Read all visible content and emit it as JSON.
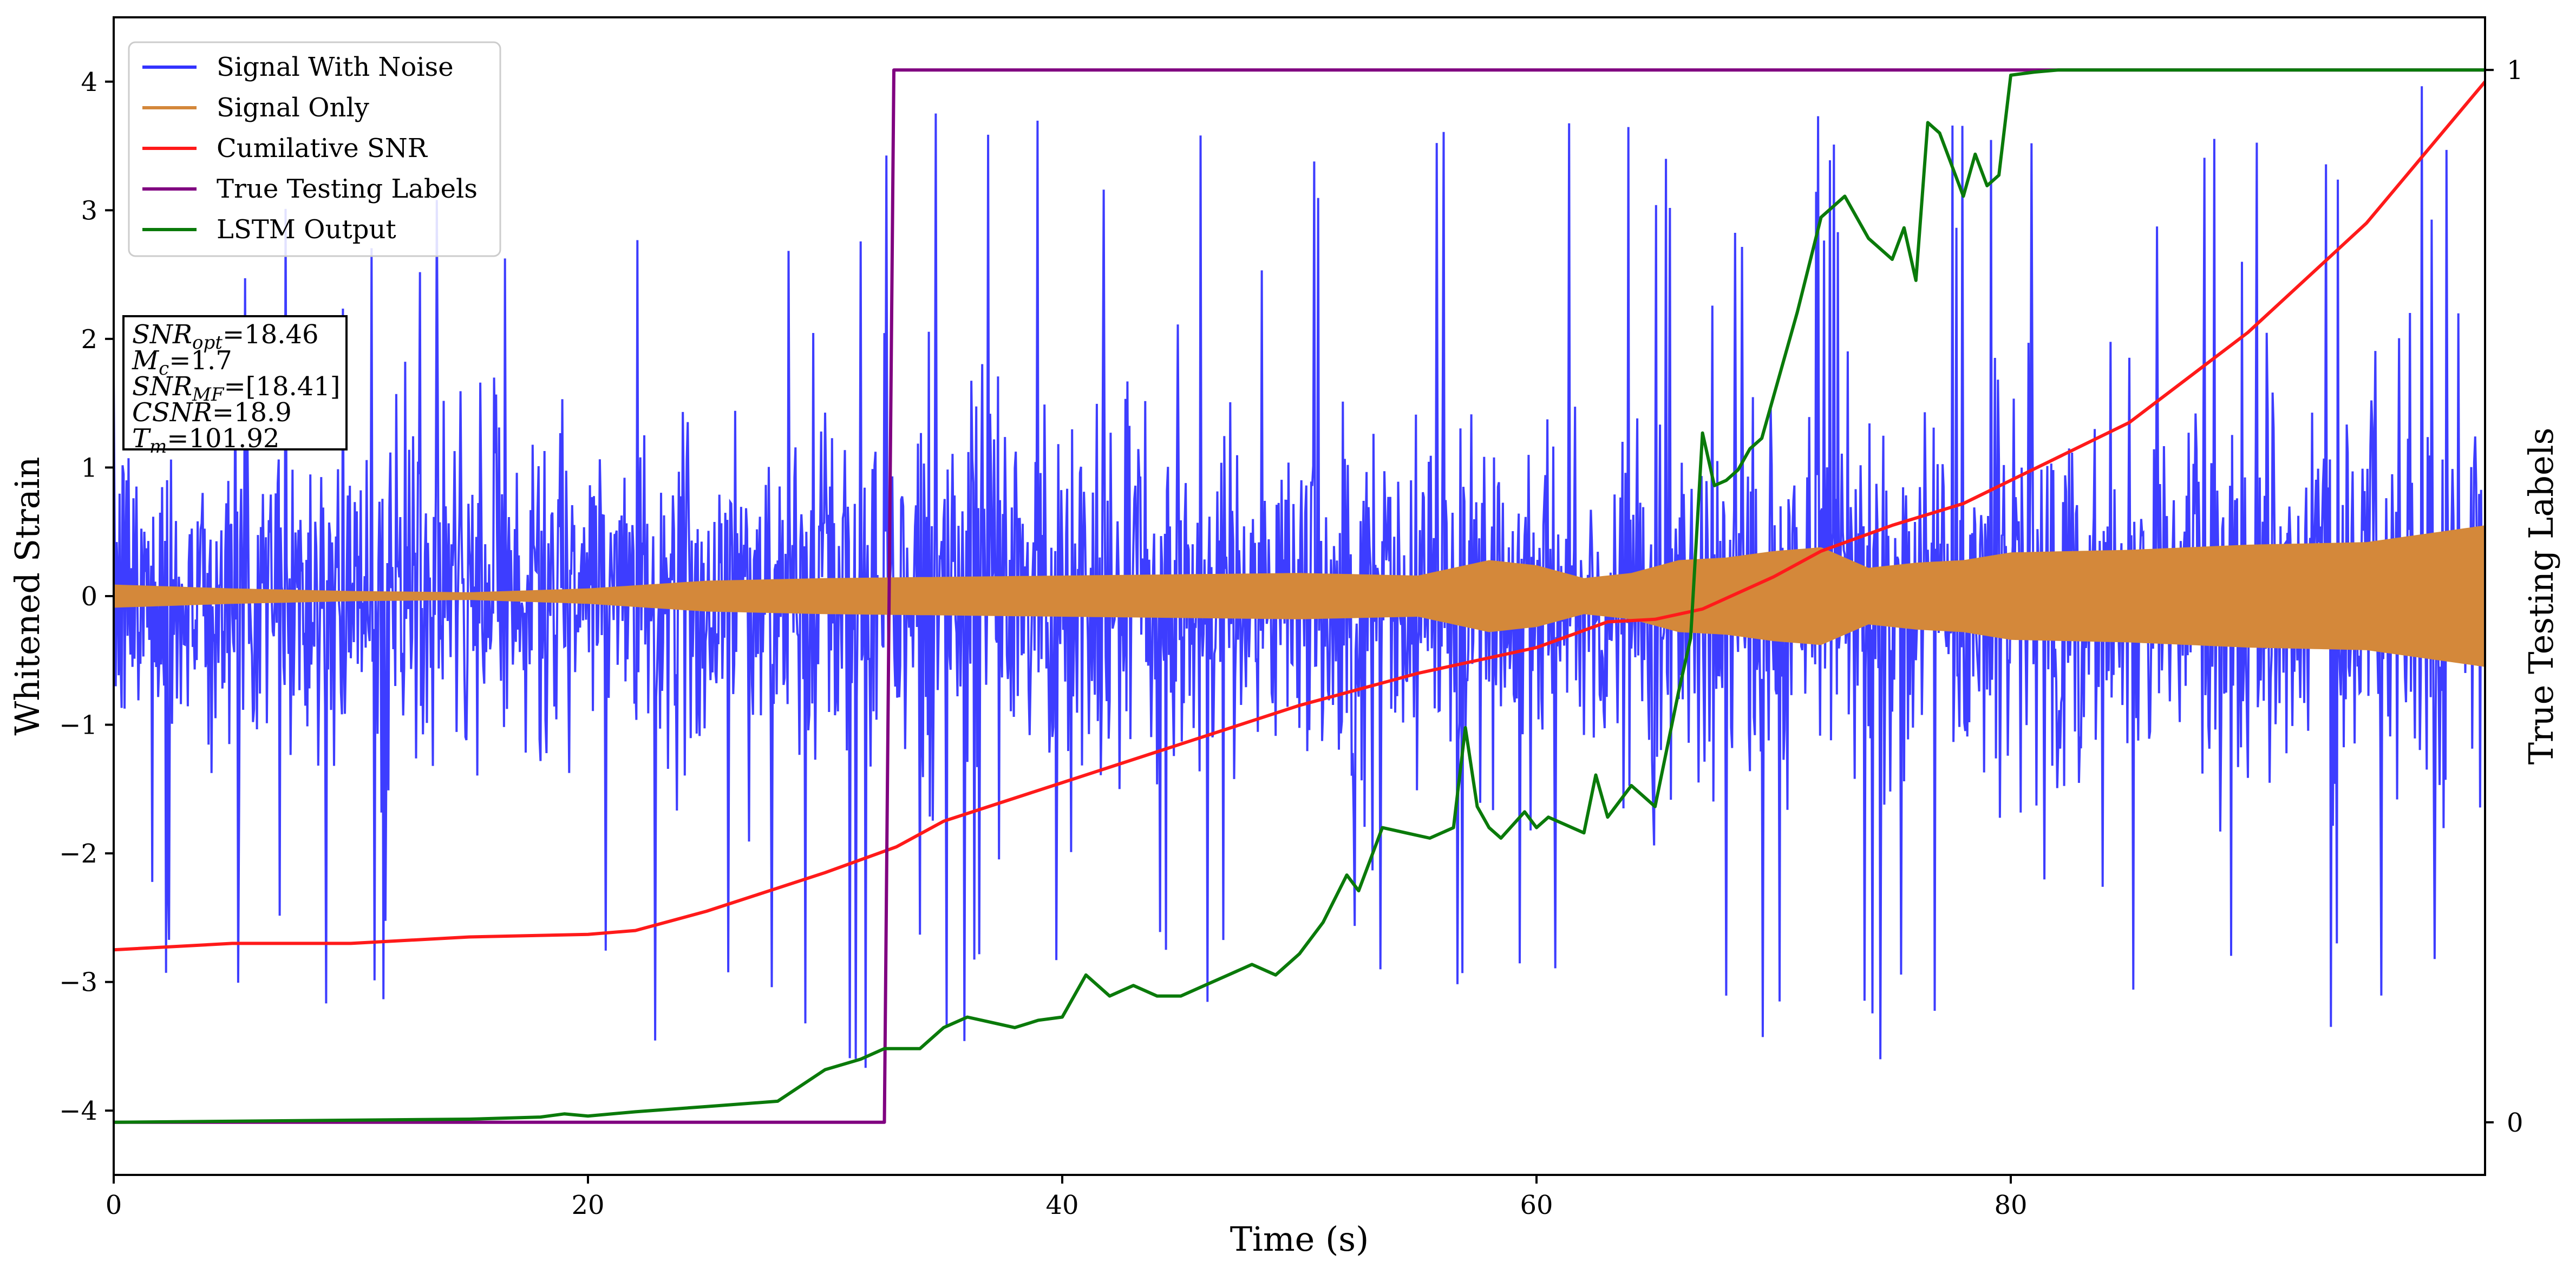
{
  "chart_data": {
    "type": "line",
    "xlabel": "Time (s)",
    "ylabel": "Whitened Strain",
    "ylabel_right": "True Testing Labels",
    "xlim": [
      0,
      100
    ],
    "ylim": [
      -4.5,
      4.5
    ],
    "ylim_right": [
      -0.05,
      1.05
    ],
    "x_ticks": [
      0,
      20,
      40,
      60,
      80
    ],
    "y_ticks": [
      -4,
      -3,
      -2,
      -1,
      0,
      1,
      2,
      3,
      4
    ],
    "y_ticks_right": [
      0,
      1
    ],
    "legend_position": "top-left",
    "info_box": {
      "position": "upper-left",
      "lines": [
        {
          "sym": "SNR",
          "sub": "opt",
          "val": "=18.46"
        },
        {
          "sym": "M",
          "sub": "c",
          "val": "=1.7"
        },
        {
          "sym": "SNR",
          "sub": "MF",
          "val": "=[18.41]"
        },
        {
          "sym": "CSNR",
          "sub": "",
          "val": "=18.9"
        },
        {
          "sym": "T",
          "sub": "m",
          "val": "=101.92"
        }
      ]
    },
    "series": [
      {
        "name": "Signal With Noise",
        "color": "#3333ff",
        "axis": "left",
        "kind": "noise_band",
        "envelope_x": [
          0,
          10,
          20,
          30,
          40,
          50,
          60,
          70,
          80,
          90,
          100
        ],
        "envelope_typical": [
          1.0,
          1.05,
          1.05,
          1.1,
          1.1,
          1.1,
          1.1,
          1.15,
          1.2,
          1.2,
          1.25
        ],
        "envelope_peak": [
          3.0,
          3.2,
          3.4,
          3.9,
          3.8,
          3.5,
          3.9,
          3.8,
          3.7,
          3.6,
          4.1
        ]
      },
      {
        "name": "Signal Only",
        "color": "#d4883a",
        "axis": "left",
        "kind": "band",
        "x": [
          0,
          5,
          10,
          15,
          20,
          25,
          30,
          35,
          40,
          45,
          50,
          55,
          58,
          60,
          62,
          64,
          66,
          68,
          70,
          72,
          74,
          76,
          78,
          80,
          85,
          90,
          95,
          100
        ],
        "amplitude": [
          0.09,
          0.06,
          0.04,
          0.03,
          0.06,
          0.12,
          0.14,
          0.15,
          0.16,
          0.17,
          0.18,
          0.16,
          0.28,
          0.24,
          0.14,
          0.18,
          0.28,
          0.3,
          0.35,
          0.38,
          0.22,
          0.26,
          0.28,
          0.34,
          0.36,
          0.4,
          0.42,
          0.55
        ]
      },
      {
        "name": "Cumilative SNR",
        "color": "#ff1a1a",
        "axis": "left",
        "x": [
          0,
          5,
          10,
          15,
          20,
          22,
          25,
          30,
          33,
          35,
          40,
          45,
          50,
          55,
          60,
          63,
          65,
          67,
          70,
          72,
          75,
          78,
          80,
          85,
          90,
          95,
          100
        ],
        "values": [
          -2.75,
          -2.7,
          -2.7,
          -2.65,
          -2.63,
          -2.6,
          -2.45,
          -2.15,
          -1.95,
          -1.75,
          -1.45,
          -1.15,
          -0.85,
          -0.6,
          -0.4,
          -0.2,
          -0.18,
          -0.1,
          0.15,
          0.35,
          0.55,
          0.72,
          0.9,
          1.35,
          2.05,
          2.9,
          4.0
        ]
      },
      {
        "name": "True Testing Labels",
        "color": "#800080",
        "axis": "right",
        "x": [
          0,
          32.5,
          32.9,
          100
        ],
        "values": [
          0,
          0,
          1,
          1
        ]
      },
      {
        "name": "LSTM Output",
        "color": "#0a7a0a",
        "axis": "right",
        "x": [
          0,
          15,
          18,
          19,
          20,
          22,
          25,
          28,
          30,
          31.5,
          32.5,
          33,
          34,
          35,
          36,
          37,
          38,
          39,
          40,
          41,
          42,
          43,
          44,
          45,
          46,
          47,
          48,
          49,
          50,
          51,
          52,
          52.5,
          53.5,
          54.5,
          55.5,
          56.5,
          57,
          57.5,
          58,
          58.5,
          59.5,
          60,
          60.5,
          61.5,
          62,
          62.5,
          63,
          64,
          65,
          66,
          66.5,
          67,
          67.5,
          68,
          68.5,
          69,
          69.5,
          70,
          71,
          72,
          73,
          74,
          75,
          75.5,
          76,
          76.5,
          77,
          78,
          78.5,
          79,
          79.5,
          80,
          81,
          82,
          83,
          85,
          100
        ],
        "values": [
          0,
          0.003,
          0.005,
          0.008,
          0.006,
          0.01,
          0.015,
          0.02,
          0.05,
          0.06,
          0.07,
          0.07,
          0.07,
          0.09,
          0.1,
          0.095,
          0.09,
          0.097,
          0.1,
          0.14,
          0.12,
          0.13,
          0.12,
          0.12,
          0.13,
          0.14,
          0.15,
          0.14,
          0.16,
          0.19,
          0.235,
          0.22,
          0.28,
          0.275,
          0.27,
          0.28,
          0.375,
          0.3,
          0.28,
          0.27,
          0.295,
          0.28,
          0.29,
          0.28,
          0.275,
          0.33,
          0.29,
          0.32,
          0.3,
          0.41,
          0.46,
          0.655,
          0.605,
          0.61,
          0.62,
          0.64,
          0.65,
          0.69,
          0.77,
          0.86,
          0.88,
          0.84,
          0.82,
          0.85,
          0.8,
          0.95,
          0.94,
          0.88,
          0.92,
          0.89,
          0.9,
          0.995,
          0.998,
          1.0,
          1.0,
          1.0,
          1.0
        ]
      }
    ]
  }
}
